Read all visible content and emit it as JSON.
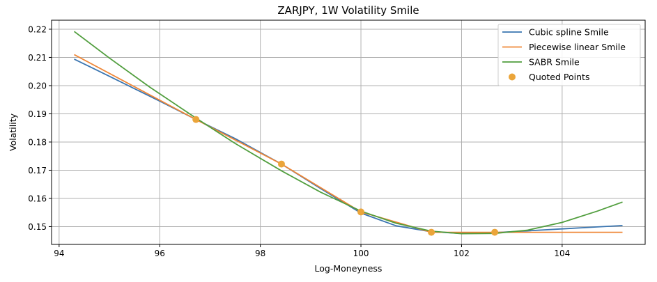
{
  "chart_data": {
    "type": "line",
    "title": "ZARJPY, 1W Volatility Smile",
    "xlabel": "Log-Moneyness",
    "ylabel": "Volatility",
    "xlim": [
      93.85,
      105.65
    ],
    "ylim": [
      0.1437,
      0.2232
    ],
    "xticks": [
      94,
      96,
      98,
      100,
      102,
      104
    ],
    "yticks": [
      0.15,
      0.16,
      0.17,
      0.18,
      0.19,
      0.2,
      0.21,
      0.22
    ],
    "grid": true,
    "legend_position": "top-right",
    "series": [
      {
        "name": "Cubic spline Smile",
        "color": "#3a75b0",
        "kind": "line",
        "x": [
          94.3,
          95.0,
          96.0,
          96.72,
          97.5,
          98.42,
          99.2,
          100.0,
          100.7,
          101.4,
          102.0,
          102.66,
          103.3,
          104.0,
          104.7,
          105.2
        ],
        "y": [
          0.2094,
          0.2033,
          0.1945,
          0.188,
          0.1812,
          0.1722,
          0.1635,
          0.1548,
          0.1503,
          0.1482,
          0.1476,
          0.1479,
          0.1485,
          0.1492,
          0.1499,
          0.1504
        ]
      },
      {
        "name": "Piecewise linear Smile",
        "color": "#ef8636",
        "kind": "line",
        "x": [
          94.3,
          96.72,
          98.42,
          100.0,
          101.4,
          102.66,
          105.2
        ],
        "y": [
          0.211,
          0.188,
          0.1722,
          0.1552,
          0.148,
          0.148,
          0.148
        ]
      },
      {
        "name": "SABR Smile",
        "color": "#519e3e",
        "kind": "line",
        "x": [
          94.3,
          95.0,
          95.8,
          96.72,
          97.5,
          98.42,
          99.2,
          100.0,
          100.7,
          101.4,
          102.0,
          102.66,
          103.3,
          104.0,
          104.7,
          105.2
        ],
        "y": [
          0.2192,
          0.2098,
          0.1995,
          0.1885,
          0.1795,
          0.1698,
          0.1622,
          0.1555,
          0.1512,
          0.1484,
          0.1475,
          0.1476,
          0.1487,
          0.1515,
          0.1555,
          0.1587
        ]
      },
      {
        "name": "Quoted Points",
        "color": "#eba53a",
        "kind": "scatter",
        "x": [
          96.72,
          98.42,
          100.0,
          101.4,
          102.66
        ],
        "y": [
          0.188,
          0.1722,
          0.1552,
          0.148,
          0.148
        ]
      }
    ]
  }
}
